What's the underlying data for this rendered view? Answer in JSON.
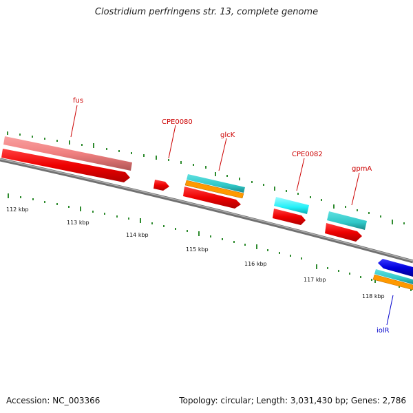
{
  "title": "Clostridium perfringens str. 13, complete genome",
  "accession": "Accession: NC_003366",
  "summary": "Topology: circular; Length: 3,031,430 bp; Genes: 2,786",
  "scale_labels": [
    "112 kbp",
    "113 kbp",
    "114 kbp",
    "115 kbp",
    "116 kbp",
    "117 kbp",
    "118 kbp"
  ],
  "gene_labels": [
    {
      "id": "fus",
      "text": "fus",
      "color": "#cc0000"
    },
    {
      "id": "cpe0080",
      "text": "CPE0080",
      "color": "#cc0000"
    },
    {
      "id": "glck",
      "text": "glcK",
      "color": "#cc0000"
    },
    {
      "id": "cpe0082",
      "text": "CPE0082",
      "color": "#cc0000"
    },
    {
      "id": "gpma",
      "text": "gpmA",
      "color": "#cc0000"
    },
    {
      "id": "iolr",
      "text": "iolR",
      "color": "#0000cc"
    }
  ],
  "colors": {
    "backbone": "#808080",
    "tick": "#2e8b2e",
    "cds": "#ee0000",
    "rrna_pink": "#f08080",
    "cyan": "#30c8c8",
    "orange": "#ff9900",
    "blue": "#0000dd"
  }
}
